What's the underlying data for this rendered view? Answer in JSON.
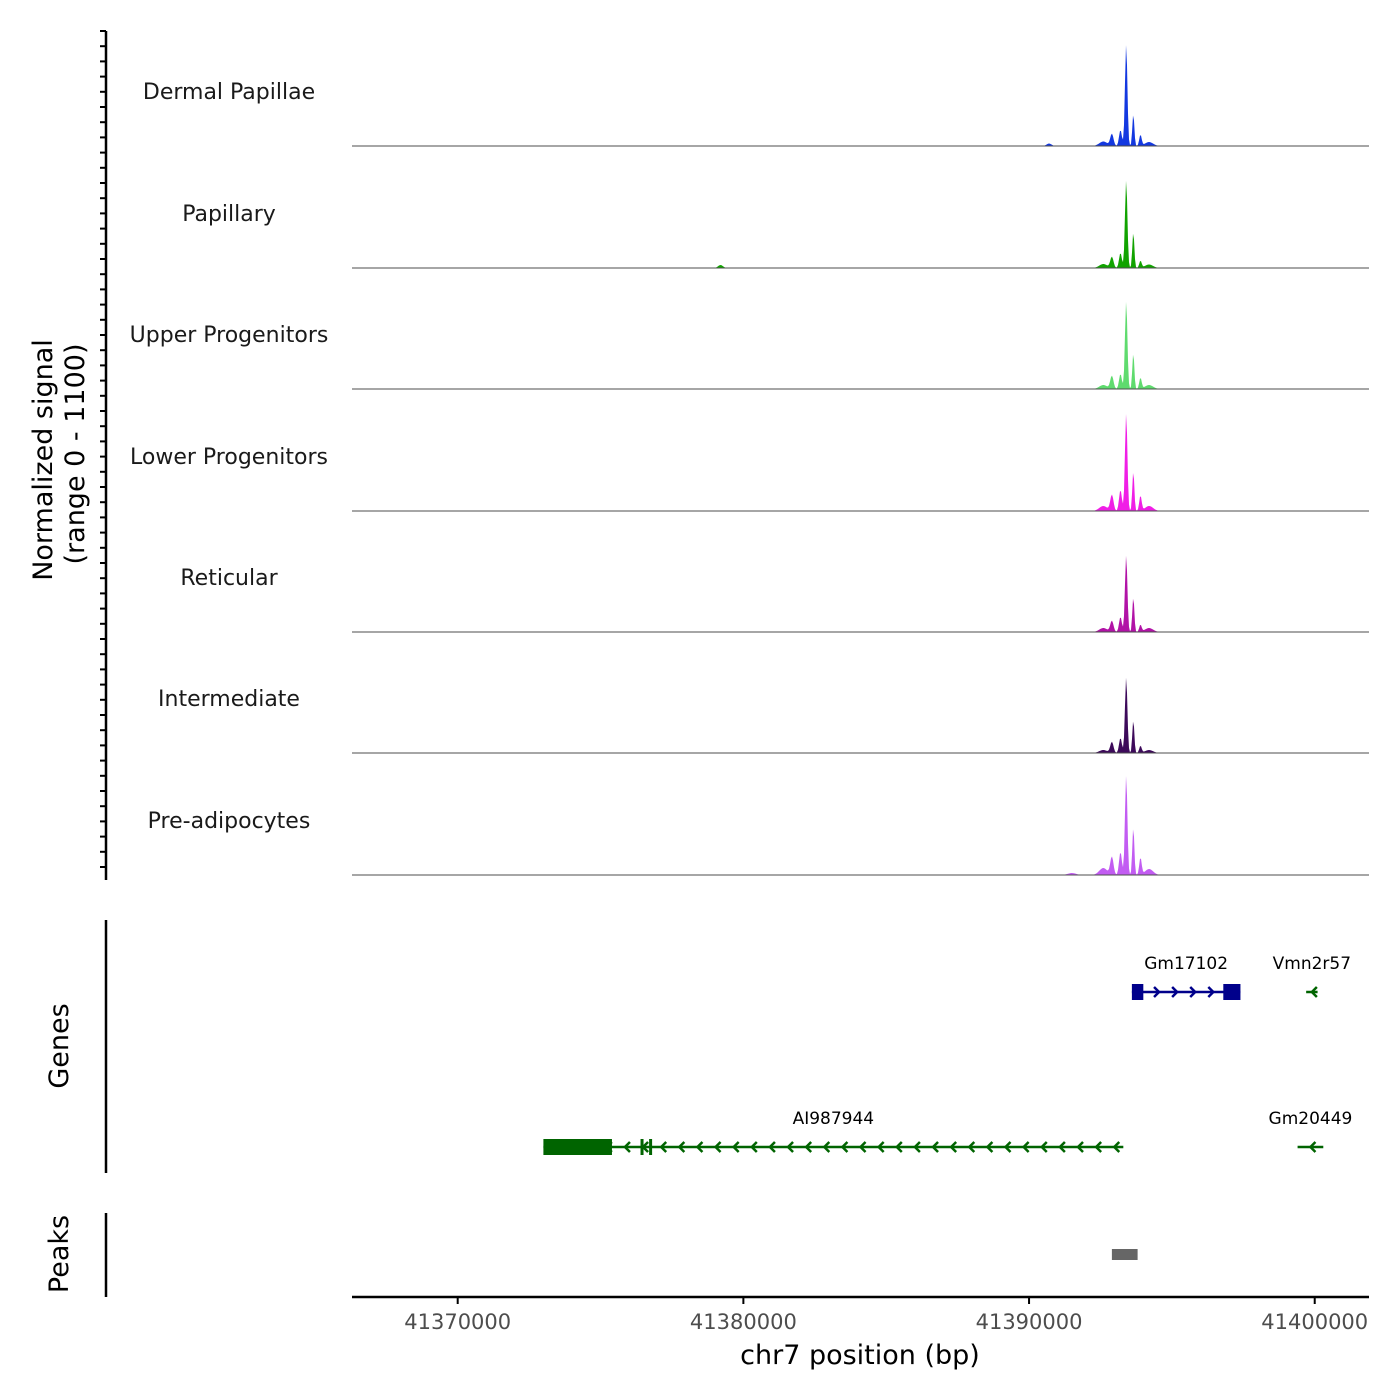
{
  "chart_data": {
    "type": "area",
    "title": "",
    "ylabel": "Normalized signal",
    "ylabel_range": "(range 0 - 1100)",
    "ylim": [
      0,
      1100
    ],
    "xlabel": "chr7 position (bp)",
    "xlim": [
      41366300,
      41401900
    ],
    "x_ticks": [
      41370000,
      41380000,
      41390000,
      41400000
    ],
    "x_tick_labels": [
      "41370000",
      "41380000",
      "41390000",
      "41400000"
    ],
    "tracks": [
      {
        "name": "Dermal Papillae",
        "color": "#1338e0",
        "peaks": [
          {
            "x": 41392900,
            "h": 120,
            "w": 80
          },
          {
            "x": 41393200,
            "h": 160,
            "w": 70
          },
          {
            "x": 41393400,
            "h": 1020,
            "w": 60
          },
          {
            "x": 41393650,
            "h": 320,
            "w": 50
          },
          {
            "x": 41393900,
            "h": 110,
            "w": 60
          },
          {
            "x": 41392600,
            "h": 45,
            "w": 200
          },
          {
            "x": 41394200,
            "h": 40,
            "w": 200
          },
          {
            "x": 41390700,
            "h": 25,
            "w": 120
          }
        ]
      },
      {
        "name": "Papillary",
        "color": "#11a300",
        "peaks": [
          {
            "x": 41392900,
            "h": 110,
            "w": 80
          },
          {
            "x": 41393200,
            "h": 150,
            "w": 70
          },
          {
            "x": 41393400,
            "h": 880,
            "w": 60
          },
          {
            "x": 41393650,
            "h": 360,
            "w": 50
          },
          {
            "x": 41393900,
            "h": 70,
            "w": 60
          },
          {
            "x": 41392600,
            "h": 40,
            "w": 200
          },
          {
            "x": 41394200,
            "h": 35,
            "w": 200
          },
          {
            "x": 41379200,
            "h": 30,
            "w": 120
          }
        ]
      },
      {
        "name": "Upper Progenitors",
        "color": "#5fdb6e",
        "peaks": [
          {
            "x": 41392900,
            "h": 130,
            "w": 80
          },
          {
            "x": 41393200,
            "h": 150,
            "w": 70
          },
          {
            "x": 41393400,
            "h": 880,
            "w": 60
          },
          {
            "x": 41393650,
            "h": 360,
            "w": 50
          },
          {
            "x": 41393900,
            "h": 110,
            "w": 60
          },
          {
            "x": 41392600,
            "h": 40,
            "w": 200
          },
          {
            "x": 41394200,
            "h": 40,
            "w": 200
          }
        ]
      },
      {
        "name": "Lower Progenitors",
        "color": "#f01ee6",
        "peaks": [
          {
            "x": 41392900,
            "h": 160,
            "w": 80
          },
          {
            "x": 41393200,
            "h": 210,
            "w": 70
          },
          {
            "x": 41393400,
            "h": 980,
            "w": 60
          },
          {
            "x": 41393650,
            "h": 400,
            "w": 50
          },
          {
            "x": 41393900,
            "h": 150,
            "w": 60
          },
          {
            "x": 41392600,
            "h": 50,
            "w": 200
          },
          {
            "x": 41394200,
            "h": 50,
            "w": 200
          }
        ]
      },
      {
        "name": "Reticular",
        "color": "#b112a6",
        "peaks": [
          {
            "x": 41392900,
            "h": 110,
            "w": 80
          },
          {
            "x": 41393200,
            "h": 150,
            "w": 70
          },
          {
            "x": 41393400,
            "h": 770,
            "w": 60
          },
          {
            "x": 41393650,
            "h": 350,
            "w": 50
          },
          {
            "x": 41393900,
            "h": 70,
            "w": 60
          },
          {
            "x": 41392600,
            "h": 40,
            "w": 200
          },
          {
            "x": 41394200,
            "h": 40,
            "w": 200
          }
        ]
      },
      {
        "name": "Intermediate",
        "color": "#3d0a5a",
        "peaks": [
          {
            "x": 41392900,
            "h": 110,
            "w": 80
          },
          {
            "x": 41393200,
            "h": 150,
            "w": 70
          },
          {
            "x": 41393400,
            "h": 760,
            "w": 60
          },
          {
            "x": 41393650,
            "h": 330,
            "w": 50
          },
          {
            "x": 41393900,
            "h": 70,
            "w": 60
          },
          {
            "x": 41392600,
            "h": 30,
            "w": 200
          },
          {
            "x": 41394200,
            "h": 30,
            "w": 200
          }
        ]
      },
      {
        "name": "Pre-adipocytes",
        "color": "#c25cf2",
        "peaks": [
          {
            "x": 41392900,
            "h": 180,
            "w": 80
          },
          {
            "x": 41393200,
            "h": 230,
            "w": 70
          },
          {
            "x": 41393400,
            "h": 1000,
            "w": 60
          },
          {
            "x": 41393650,
            "h": 480,
            "w": 50
          },
          {
            "x": 41393900,
            "h": 170,
            "w": 60
          },
          {
            "x": 41392600,
            "h": 70,
            "w": 200
          },
          {
            "x": 41394200,
            "h": 60,
            "w": 200
          },
          {
            "x": 41391500,
            "h": 20,
            "w": 200
          }
        ]
      }
    ],
    "genes_label": "Genes",
    "genes": [
      {
        "name": "Gm17102",
        "strand": "+",
        "color": "#00008b",
        "row": 0,
        "start": 41393600,
        "end": 41397400,
        "exons": [
          [
            41393600,
            41394000
          ],
          [
            41396800,
            41397400
          ]
        ]
      },
      {
        "name": "Vmn2r57",
        "strand": "-",
        "color": "#006400",
        "row": 0,
        "start": 41399700,
        "end": 41400100,
        "exons": []
      },
      {
        "name": "AI987944",
        "strand": "-",
        "color": "#006400",
        "row": 1,
        "start": 41373000,
        "end": 41393300,
        "exons": [
          [
            41373000,
            41375400
          ],
          [
            41376400,
            41376500
          ],
          [
            41376700,
            41376800
          ]
        ]
      },
      {
        "name": "Gm20449",
        "strand": "-",
        "color": "#006400",
        "row": 1,
        "start": 41399400,
        "end": 41400300,
        "exons": []
      }
    ],
    "peaks_label": "Peaks",
    "peak_regions": [
      {
        "start": 41392900,
        "end": 41393800,
        "color": "#666666"
      }
    ]
  }
}
